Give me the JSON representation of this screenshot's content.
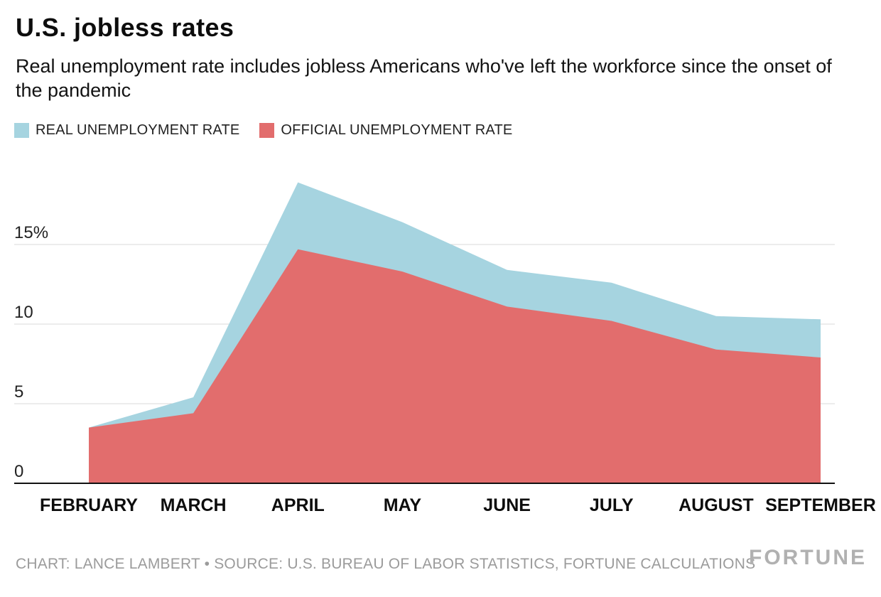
{
  "header": {
    "title": "U.S. jobless rates",
    "subtitle": "Real unemployment rate includes jobless Americans who've left the workforce since the onset of the pandemic"
  },
  "legend": [
    {
      "label": "REAL UNEMPLOYMENT RATE",
      "color": "#a6d4e0"
    },
    {
      "label": "OFFICIAL UNEMPLOYMENT RATE",
      "color": "#e26d6d"
    }
  ],
  "chart_data": {
    "type": "area",
    "categories": [
      "FEBRUARY",
      "MARCH",
      "APRIL",
      "MAY",
      "JUNE",
      "JULY",
      "AUGUST",
      "SEPTEMBER"
    ],
    "series": [
      {
        "name": "REAL UNEMPLOYMENT RATE",
        "color": "#a6d4e0",
        "values": [
          3.5,
          5.4,
          18.9,
          16.4,
          13.4,
          12.6,
          10.5,
          10.3
        ]
      },
      {
        "name": "OFFICIAL UNEMPLOYMENT RATE",
        "color": "#e26d6d",
        "values": [
          3.5,
          4.4,
          14.7,
          13.3,
          11.1,
          10.2,
          8.4,
          7.9
        ]
      }
    ],
    "title": "U.S. jobless rates",
    "xlabel": "",
    "ylabel": "",
    "yticks": [
      0,
      5,
      10,
      15
    ],
    "ytick_labels": [
      "0",
      "5",
      "10",
      "15%"
    ],
    "ylim": [
      0,
      19.5
    ],
    "grid": true,
    "grid_color": "#d9d9d9",
    "baseline_color": "#111111",
    "legend_position": "top"
  },
  "footer": {
    "credit": "CHART: LANCE LAMBERT • SOURCE: U.S. BUREAU OF LABOR STATISTICS, FORTUNE CALCULATIONS",
    "brand": "FORTUNE"
  }
}
